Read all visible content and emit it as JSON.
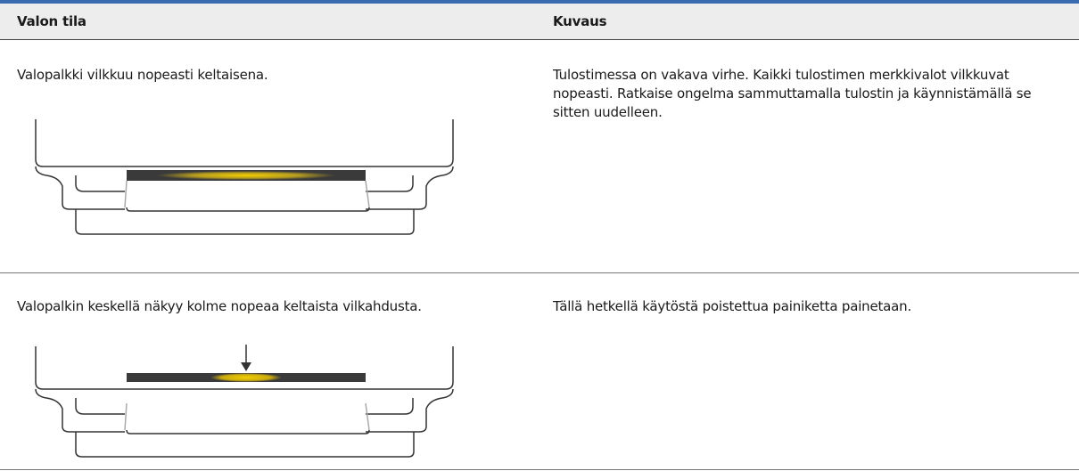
{
  "table": {
    "header": [
      "Valon tila",
      "Kuvaus"
    ],
    "rows": [
      [
        "Valopalkki vilkkuu nopeasti keltaisena.",
        "Tulostimessa on vakava virhe. Kaikki tulostimen merkkivalot vilkkuvat nopeasti. Ratkaise ongelma sammuttamalla tulostin ja käynnistämällä se sitten uudelleen."
      ],
      [
        "Valopalkin keskellä näkyy kolme nopeaa keltaista vilkahdusta.",
        "Tällä hetkellä käytöstä poistettua painiketta painetaan."
      ]
    ]
  }
}
